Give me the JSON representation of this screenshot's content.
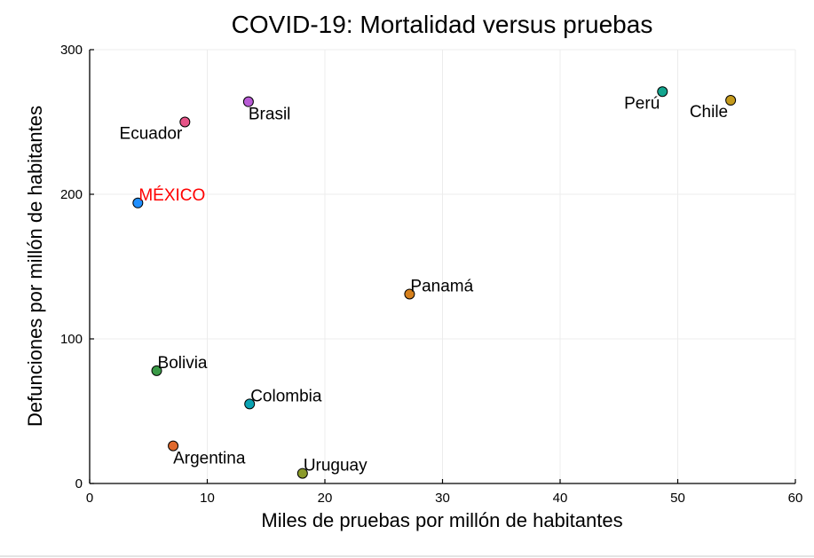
{
  "chart_data": {
    "type": "scatter",
    "title": "COVID-19: Mortalidad versus pruebas",
    "xlabel": "Miles de pruebas por millón de habitantes",
    "ylabel": "Defunciones por millón de habitantes",
    "xlim": [
      0,
      60
    ],
    "ylim": [
      0,
      300
    ],
    "xticks": [
      0,
      10,
      20,
      30,
      40,
      50,
      60
    ],
    "yticks": [
      0,
      100,
      200,
      300
    ],
    "grid": true,
    "legend": "none",
    "points": [
      {
        "label": "MÉXICO",
        "x": 4.1,
        "y": 194,
        "color": "#1f8fff",
        "label_color": "#ff0000",
        "label_pos": "right-above"
      },
      {
        "label": "Ecuador",
        "x": 8.1,
        "y": 250,
        "color": "#e65387",
        "label_pos": "left-below"
      },
      {
        "label": "Brasil",
        "x": 13.5,
        "y": 264,
        "color": "#b85bd5",
        "label_pos": "right-below"
      },
      {
        "label": "Perú",
        "x": 48.7,
        "y": 271,
        "color": "#13a58e",
        "label_pos": "left-below"
      },
      {
        "label": "Chile",
        "x": 54.5,
        "y": 265,
        "color": "#c49a1c",
        "label_pos": "left-below"
      },
      {
        "label": "Panamá",
        "x": 27.2,
        "y": 131,
        "color": "#d6801c",
        "label_pos": "right-above"
      },
      {
        "label": "Bolivia",
        "x": 5.7,
        "y": 78,
        "color": "#3a9a47",
        "label_pos": "right-above"
      },
      {
        "label": "Colombia",
        "x": 13.6,
        "y": 55,
        "color": "#0aa3b3",
        "label_pos": "right-above"
      },
      {
        "label": "Argentina",
        "x": 7.1,
        "y": 26,
        "color": "#e0692d",
        "label_pos": "right-below"
      },
      {
        "label": "Uruguay",
        "x": 18.1,
        "y": 7,
        "color": "#8a9a2a",
        "label_pos": "right-above"
      }
    ]
  }
}
